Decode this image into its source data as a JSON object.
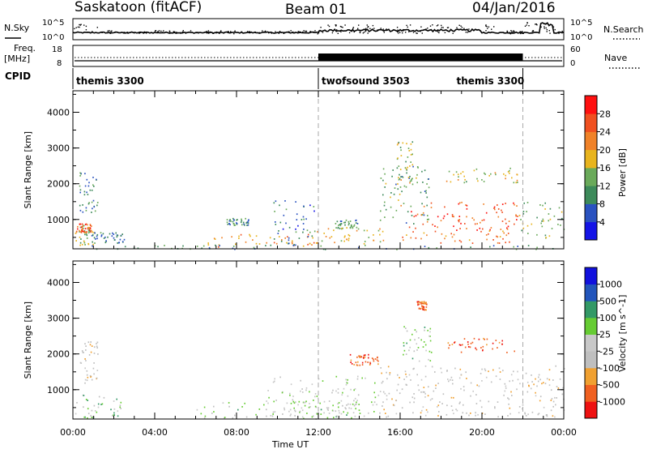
{
  "header": {
    "station": "Saskatoon (fitACF)",
    "beam": "Beam 01",
    "date": "04/Jan/2016"
  },
  "strip_labels": {
    "nsky": "N.Sky",
    "nsearch": "N.Search",
    "freq_line1": "Freq.",
    "freq_line2": "[MHz]",
    "nave": "Nave",
    "cpid": "CPID",
    "nsky_ticks": [
      "10^5",
      "10^0"
    ],
    "nsearch_ticks": [
      "10^5",
      "10^0"
    ],
    "freq_ticks": [
      "18",
      "8"
    ],
    "nave_ticks": [
      "60",
      "0"
    ]
  },
  "cpid_segments": [
    {
      "label": "themis 3300",
      "start_h": 0,
      "end_h": 12
    },
    {
      "label": "twofsound 3503",
      "start_h": 12,
      "end_h": 22
    },
    {
      "label": "themis 3300",
      "start_h": 22,
      "end_h": 24
    }
  ],
  "xaxis": {
    "label": "Time UT",
    "ticks": [
      "00:00",
      "04:00",
      "08:00",
      "12:00",
      "16:00",
      "20:00",
      "00:00"
    ],
    "range_h": [
      0,
      24
    ]
  },
  "colors": {
    "power": [
      "#1414e6",
      "#2a52c0",
      "#3d8a5a",
      "#6aaa5a",
      "#e8b41e",
      "#f08228",
      "#f05020",
      "#ff1010"
    ],
    "velocity": [
      "#ee1111",
      "#f06020",
      "#f0a030",
      "#bfbfbf",
      "#c8c8c8",
      "#66cc33",
      "#339966",
      "#2255bb",
      "#1111dd"
    ]
  },
  "chart_data": [
    {
      "type": "heatmap",
      "name": "power",
      "ylabel": "Slant Range [km]",
      "yticks": [
        "1000",
        "2000",
        "3000",
        "4000"
      ],
      "ylim": [
        180,
        4600
      ],
      "xlim": [
        0,
        24
      ],
      "colorbar_label": "Power [dB]",
      "colorbar_ticks": [
        "4",
        "8",
        "12",
        "16",
        "20",
        "24",
        "28"
      ],
      "colorbar_range": [
        0,
        32
      ],
      "regions": [
        {
          "t0": 0.1,
          "t1": 1.1,
          "r0": 300,
          "r1": 900,
          "mean": 14
        },
        {
          "t0": 0.1,
          "t1": 0.9,
          "r0": 650,
          "r1": 900,
          "mean": 26
        },
        {
          "t0": 0.3,
          "t1": 1.2,
          "r0": 1200,
          "r1": 2400,
          "mean": 9
        },
        {
          "t0": 0.9,
          "t1": 2.5,
          "r0": 350,
          "r1": 650,
          "mean": 8
        },
        {
          "t0": 6.5,
          "t1": 12,
          "r0": 250,
          "r1": 600,
          "mean": 21
        },
        {
          "t0": 7.5,
          "t1": 8.6,
          "r0": 850,
          "r1": 1050,
          "mean": 10
        },
        {
          "t0": 9.8,
          "t1": 11.8,
          "r0": 300,
          "r1": 1600,
          "mean": 8
        },
        {
          "t0": 11.5,
          "t1": 15.2,
          "r0": 300,
          "r1": 800,
          "mean": 17
        },
        {
          "t0": 12.8,
          "t1": 14.0,
          "r0": 750,
          "r1": 1000,
          "mean": 12
        },
        {
          "t0": 15.0,
          "t1": 17.4,
          "r0": 900,
          "r1": 2500,
          "mean": 12
        },
        {
          "t0": 15.8,
          "t1": 16.6,
          "r0": 2000,
          "r1": 3200,
          "mean": 16
        },
        {
          "t0": 16.0,
          "t1": 21.8,
          "r0": 700,
          "r1": 1500,
          "mean": 25
        },
        {
          "t0": 16.0,
          "t1": 21.5,
          "r0": 350,
          "r1": 700,
          "mean": 23
        },
        {
          "t0": 18.2,
          "t1": 21.8,
          "r0": 2050,
          "r1": 2450,
          "mean": 16
        },
        {
          "t0": 21.8,
          "t1": 24.0,
          "r0": 500,
          "r1": 1500,
          "mean": 14
        },
        {
          "t0": 0,
          "t1": 24,
          "r0": 180,
          "r1": 300,
          "mean": 10
        }
      ]
    },
    {
      "type": "heatmap",
      "name": "velocity",
      "ylabel": "Slant Range [km]",
      "yticks": [
        "1000",
        "2000",
        "3000",
        "4000"
      ],
      "ylim": [
        180,
        4600
      ],
      "xlim": [
        0,
        24
      ],
      "colorbar_label": "Velocity [m s^-1]",
      "colorbar_ticks": [
        "1000",
        "500",
        "100",
        "25",
        "-25",
        "-100",
        "-500",
        "-1000"
      ],
      "regions": [
        {
          "t0": 0.1,
          "t1": 2.4,
          "r0": 200,
          "r1": 900,
          "cls": 5
        },
        {
          "t0": 0.3,
          "t1": 1.2,
          "r0": 1200,
          "r1": 2400,
          "cls": 3
        },
        {
          "t0": 6.0,
          "t1": 14.0,
          "r0": 200,
          "r1": 700,
          "cls": 5
        },
        {
          "t0": 9.5,
          "t1": 15.0,
          "r0": 250,
          "r1": 1400,
          "cls": 4
        },
        {
          "t0": 15.0,
          "t1": 24.0,
          "r0": 250,
          "r1": 1700,
          "cls": 3
        },
        {
          "t0": 16.0,
          "t1": 17.5,
          "r0": 1800,
          "r1": 2800,
          "cls": 5
        },
        {
          "t0": 18.2,
          "t1": 21.7,
          "r0": 2050,
          "r1": 2450,
          "cls": 1
        },
        {
          "t0": 13.5,
          "t1": 15.0,
          "r0": 1700,
          "r1": 2000,
          "cls": 1
        },
        {
          "t0": 16.8,
          "t1": 17.3,
          "r0": 3250,
          "r1": 3500,
          "cls": 1
        }
      ]
    }
  ]
}
